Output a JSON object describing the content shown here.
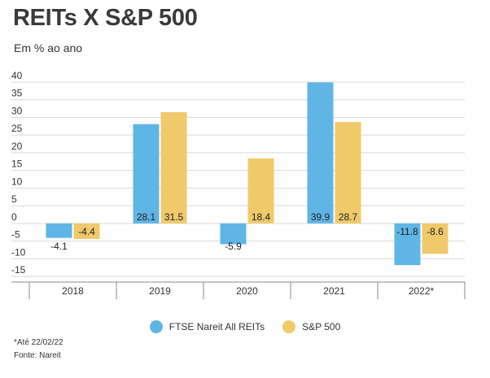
{
  "title": "REITs X S&P 500",
  "subtitle": "Em % ao ano",
  "footnote": "*Até 22/02/22",
  "source": "Fonte: Nareit",
  "colors": {
    "reits": "#5fb5e5",
    "sp500": "#f0c96a",
    "grid": "#d9d9d9",
    "axis": "#888888"
  },
  "chart_data": {
    "type": "bar",
    "categories": [
      "2018",
      "2019",
      "2020",
      "2021",
      "2022*"
    ],
    "series": [
      {
        "name": "FTSE Nareit All REITs",
        "values": [
          -4.1,
          28.1,
          -5.9,
          39.9,
          -11.8
        ],
        "labels": [
          "-4.1",
          "28.1",
          "-5.9",
          "39.9",
          "-11.8"
        ]
      },
      {
        "name": "S&P 500",
        "values": [
          -4.4,
          31.5,
          18.4,
          28.7,
          -8.6
        ],
        "labels": [
          "-4.4",
          "31.5",
          "18.4",
          "28.7",
          "-8.6"
        ]
      }
    ],
    "yticks": [
      "40",
      "35",
      "30",
      "25",
      "20",
      "15",
      "10",
      "5",
      "0",
      "-5",
      "-10",
      "-15"
    ],
    "ylim": [
      -15,
      40
    ],
    "grid": true,
    "legend_position": "bottom"
  }
}
